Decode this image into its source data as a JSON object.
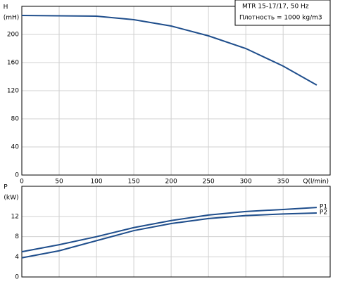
{
  "chart_data": [
    {
      "type": "line",
      "title": "MTR 15-17/17, 50 Hz",
      "subtitle": "Плотность = 1000 kg/m3",
      "ylabel": "H",
      "yunit": "(mH)",
      "xlabel": "Q(l/min)",
      "x": [
        0,
        50,
        100,
        150,
        200,
        250,
        300,
        350,
        395
      ],
      "series": [
        {
          "name": "H",
          "color": "#1f4e8c",
          "values": [
            227,
            226.5,
            226,
            221,
            212,
            198,
            180,
            155,
            128
          ]
        }
      ],
      "xlim": [
        0,
        413
      ],
      "xticks": [
        0,
        50,
        100,
        150,
        200,
        250,
        300,
        350
      ],
      "ylim": [
        0,
        240
      ],
      "yticks": [
        0,
        40,
        80,
        120,
        160,
        200
      ],
      "grid": true
    },
    {
      "type": "line",
      "ylabel": "P",
      "yunit": "(kW)",
      "x": [
        0,
        50,
        100,
        150,
        200,
        250,
        300,
        350,
        395
      ],
      "series": [
        {
          "name": "P1",
          "color": "#1f4e8c",
          "values": [
            5.0,
            6.4,
            8.0,
            9.8,
            11.2,
            12.3,
            13.0,
            13.4,
            13.8
          ]
        },
        {
          "name": "P2",
          "color": "#1f4e8c",
          "values": [
            3.8,
            5.2,
            7.2,
            9.2,
            10.6,
            11.6,
            12.2,
            12.5,
            12.7
          ]
        }
      ],
      "xlim": [
        0,
        413
      ],
      "xticks": [
        0,
        50,
        100,
        150,
        200,
        250,
        300,
        350
      ],
      "ylim": [
        0,
        18
      ],
      "yticks": [
        0,
        4,
        8,
        12
      ],
      "grid": true
    }
  ]
}
